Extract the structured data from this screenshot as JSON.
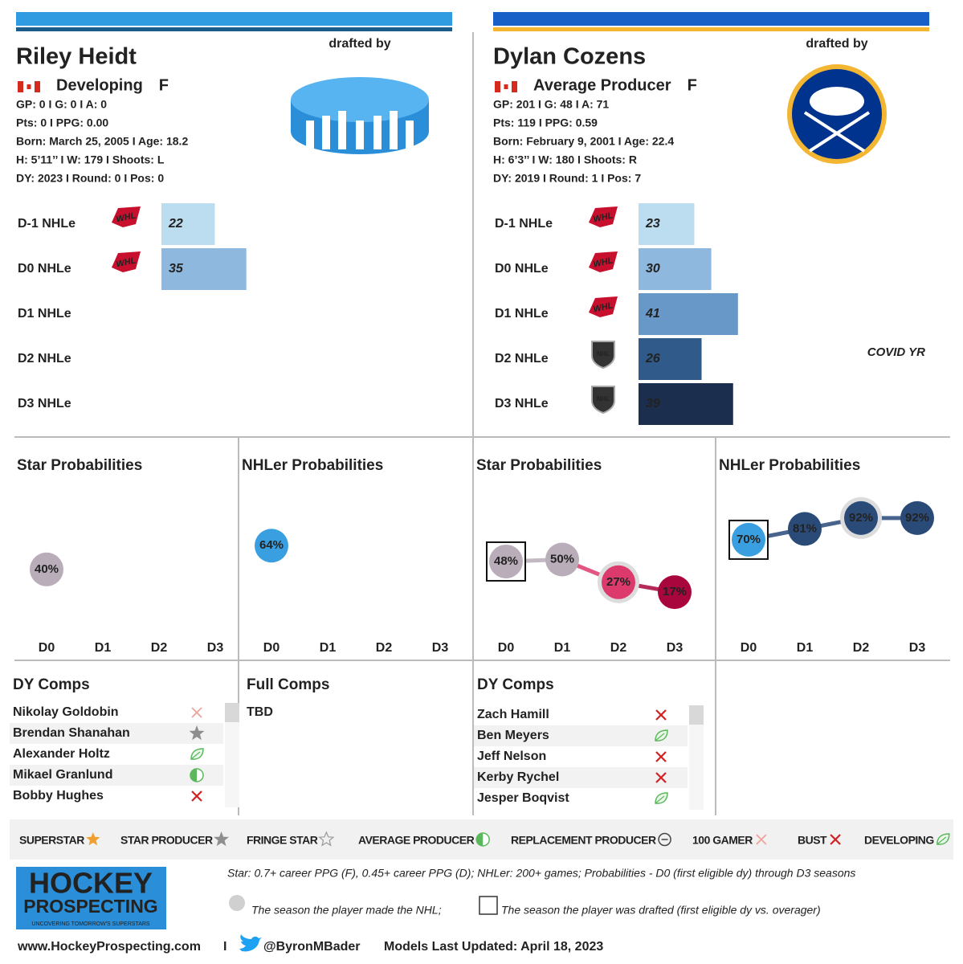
{
  "players": [
    {
      "name": "Riley Heidt",
      "drafted_by": "drafted by",
      "status": "Developing",
      "position": "F",
      "stats": [
        "GP: 0 I G: 0 I A: 0",
        "Pts: 0 I PPG: 0.00",
        "Born: March 25, 2005 I Age: 18.2",
        "H: 5’11’’ I W: 179 I Shoots: L",
        "DY: 2023 I Round: 0 I Pos: 0"
      ],
      "team_logo": "puck",
      "bar_colors": [
        "#2f9be0",
        "#1b5e8c"
      ],
      "nhle": {
        "type": "bar",
        "categories": [
          "D-1 NHLe",
          "D0 NHLe",
          "D1 NHLe",
          "D2 NHLe",
          "D3 NHLe"
        ],
        "values": [
          22,
          35,
          null,
          null,
          null
        ],
        "leagues": [
          "WHL",
          "WHL",
          null,
          null,
          null
        ],
        "colors": [
          "#bcdcf0",
          "#8fb8de",
          "#6898c8",
          "#2f5a8a",
          "#1b2e4e"
        ]
      },
      "star": {
        "type": "line",
        "title": "Star Probabilities",
        "categories": [
          "D0",
          "D1",
          "D2",
          "D3"
        ],
        "values": [
          40,
          null,
          null,
          null
        ],
        "value_labels": [
          "40%",
          null,
          null,
          null
        ],
        "colors": [
          "#b8adb8",
          null,
          null,
          null
        ]
      },
      "nhler": {
        "type": "line",
        "title": "NHLer Probabilities",
        "categories": [
          "D0",
          "D1",
          "D2",
          "D3"
        ],
        "values": [
          64,
          null,
          null,
          null
        ],
        "value_labels": [
          "64%",
          null,
          null,
          null
        ],
        "colors": [
          "#3a9fe0",
          null,
          null,
          null
        ]
      },
      "comps": {
        "title": "DY Comps",
        "rows": [
          {
            "name": "Nikolay Goldobin",
            "icon": "100-gamer"
          },
          {
            "name": "Brendan Shanahan",
            "icon": "star-producer"
          },
          {
            "name": "Alexander Holtz",
            "icon": "developing"
          },
          {
            "name": "Mikael Granlund",
            "icon": "average-producer"
          },
          {
            "name": "Bobby Hughes",
            "icon": "bust"
          }
        ]
      },
      "full_comps": {
        "title": "Full Comps",
        "text": "TBD"
      }
    },
    {
      "name": "Dylan Cozens",
      "drafted_by": "drafted by",
      "status": "Average Producer",
      "position": "F",
      "stats": [
        "GP: 201 I G: 48 I A: 71",
        "Pts: 119 I PPG: 0.59",
        "Born: February 9, 2001 I Age: 22.4",
        "H: 6’3’’ I W: 180 I Shoots: R",
        "DY: 2019 I Round: 1 I Pos: 7"
      ],
      "team_logo": "sabres",
      "bar_colors": [
        "#1660c8",
        "#f2b632"
      ],
      "nhle": {
        "type": "bar",
        "categories": [
          "D-1 NHLe",
          "D0 NHLe",
          "D1 NHLe",
          "D2 NHLe",
          "D3 NHLe"
        ],
        "values": [
          23,
          30,
          41,
          26,
          39
        ],
        "leagues": [
          "WHL",
          "WHL",
          "WHL",
          "NHL",
          "NHL"
        ],
        "colors": [
          "#bcdcf0",
          "#8fb8de",
          "#6898c8",
          "#2f5a8a",
          "#1b2e4e"
        ],
        "annotation": "COVID YR"
      },
      "star": {
        "type": "line",
        "title": "Star Probabilities",
        "categories": [
          "D0",
          "D1",
          "D2",
          "D3"
        ],
        "values": [
          48,
          50,
          27,
          17
        ],
        "value_labels": [
          "48%",
          "50%",
          "27%",
          "17%"
        ],
        "colors": [
          "#b8adb8",
          "#b8adb8",
          "#dc3a6c",
          "#a8063d"
        ],
        "drafted": 0,
        "made_nhl": 2
      },
      "nhler": {
        "type": "line",
        "title": "NHLer Probabilities",
        "categories": [
          "D0",
          "D1",
          "D2",
          "D3"
        ],
        "values": [
          70,
          81,
          92,
          92
        ],
        "value_labels": [
          "70%",
          "81%",
          "92%",
          "92%"
        ],
        "colors": [
          "#3a9fe0",
          "#2a4a78",
          "#2a4a78",
          "#2a4a78"
        ],
        "drafted": 0,
        "made_nhl": 2
      },
      "comps": {
        "title": "DY Comps",
        "rows": [
          {
            "name": "Zach Hamill",
            "icon": "bust"
          },
          {
            "name": "Ben Meyers",
            "icon": "developing"
          },
          {
            "name": "Jeff Nelson",
            "icon": "bust"
          },
          {
            "name": "Kerby Rychel",
            "icon": "bust"
          },
          {
            "name": "Jesper Boqvist",
            "icon": "developing"
          }
        ]
      }
    }
  ],
  "legend": [
    {
      "label": "SUPERSTAR",
      "icon": "superstar"
    },
    {
      "label": "STAR PRODUCER",
      "icon": "star-producer"
    },
    {
      "label": "FRINGE STAR",
      "icon": "fringe-star"
    },
    {
      "label": "AVERAGE PRODUCER",
      "icon": "average-producer"
    },
    {
      "label": "REPLACEMENT PRODUCER",
      "icon": "replacement-producer"
    },
    {
      "label": "100 GAMER",
      "icon": "100-gamer"
    },
    {
      "label": "BUST",
      "icon": "bust"
    },
    {
      "label": "DEVELOPING",
      "icon": "developing"
    }
  ],
  "footer": {
    "logo_line1": "HOCKEY",
    "logo_line2": "PROSPECTING",
    "logo_tagline": "UNCOVERING TOMORROW'S SUPERSTARS",
    "notes": "Star: 0.7+ career PPG (F), 0.45+ career PPG (D); NHLer: 200+ games; Probabilities - D0 (first eligible dy) through D3 seasons",
    "key_nhl": "The season the player made the NHL;",
    "key_drafted": "The season the player was drafted (first eligible dy vs. overager)",
    "site": "www.HockeyProspecting.com",
    "separator": "I",
    "twitter": "@ByronMBader",
    "updated": "Models Last Updated: April 18, 2023"
  }
}
